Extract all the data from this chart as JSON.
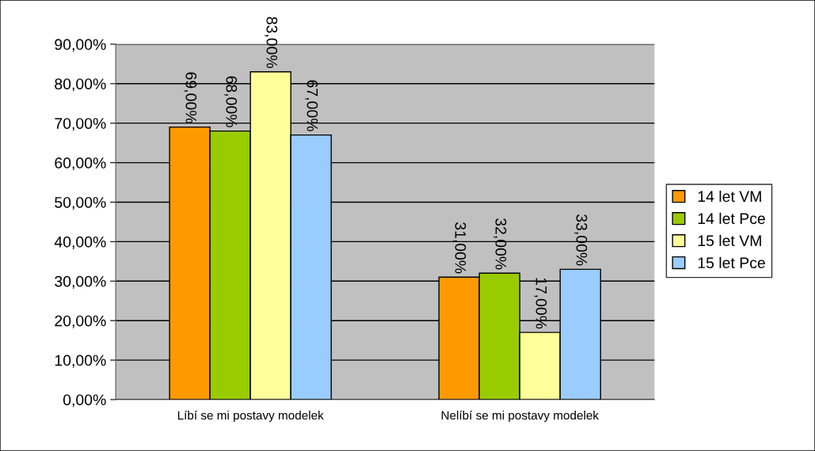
{
  "chart_data": {
    "type": "bar",
    "categories": [
      "Líbí se mi postavy modelek",
      "Nelíbí se mi postavy modelek"
    ],
    "series": [
      {
        "name": "14 let VM",
        "color": "#ff9900",
        "values": [
          69,
          31
        ],
        "value_labels": [
          "69,00%",
          "31,00%"
        ]
      },
      {
        "name": "14 let Pce",
        "color": "#99cc00",
        "values": [
          68,
          32
        ],
        "value_labels": [
          "68,00%",
          "32,00%"
        ]
      },
      {
        "name": "15 let VM",
        "color": "#ffff99",
        "values": [
          83,
          17
        ],
        "value_labels": [
          "83,00%",
          "17,00%"
        ]
      },
      {
        "name": "15 let Pce",
        "color": "#99ccff",
        "values": [
          67,
          33
        ],
        "value_labels": [
          "67,00%",
          "33,00%"
        ]
      }
    ],
    "ylim": [
      0,
      90
    ],
    "yticks": [
      {
        "value": 0,
        "label": "0,00%"
      },
      {
        "value": 10,
        "label": "10,00%"
      },
      {
        "value": 20,
        "label": "20,00%"
      },
      {
        "value": 30,
        "label": "30,00%"
      },
      {
        "value": 40,
        "label": "40,00%"
      },
      {
        "value": 50,
        "label": "50,00%"
      },
      {
        "value": 60,
        "label": "60,00%"
      },
      {
        "value": 70,
        "label": "70,00%"
      },
      {
        "value": 80,
        "label": "80,00%"
      },
      {
        "value": 90,
        "label": "90,00%"
      }
    ],
    "grid": "y",
    "legend": "right"
  }
}
